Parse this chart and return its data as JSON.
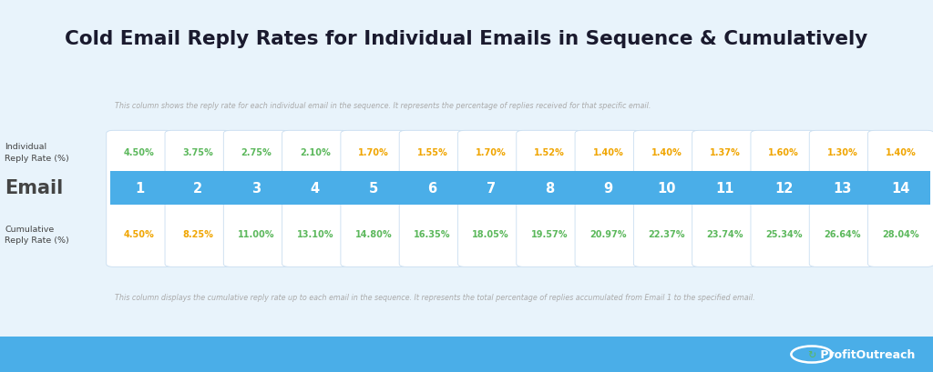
{
  "title": "Cold Email Reply Rates for Individual Emails in Sequence & Cumulatively",
  "emails": [
    1,
    2,
    3,
    4,
    5,
    6,
    7,
    8,
    9,
    10,
    11,
    12,
    13,
    14
  ],
  "individual_rates": [
    "4.50%",
    "3.75%",
    "2.75%",
    "2.10%",
    "1.70%",
    "1.55%",
    "1.70%",
    "1.52%",
    "1.40%",
    "1.40%",
    "1.37%",
    "1.60%",
    "1.30%",
    "1.40%"
  ],
  "individual_colors": [
    "#5cb85c",
    "#5cb85c",
    "#5cb85c",
    "#5cb85c",
    "#f0a500",
    "#f0a500",
    "#f0a500",
    "#f0a500",
    "#f0a500",
    "#f0a500",
    "#f0a500",
    "#f0a500",
    "#f0a500",
    "#f0a500"
  ],
  "cumulative_rates": [
    "4.50%",
    "8.25%",
    "11.00%",
    "13.10%",
    "14.80%",
    "16.35%",
    "18.05%",
    "19.57%",
    "20.97%",
    "22.37%",
    "23.74%",
    "25.34%",
    "26.64%",
    "28.04%"
  ],
  "cumulative_colors": [
    "#f0a500",
    "#f0a500",
    "#5cb85c",
    "#5cb85c",
    "#5cb85c",
    "#5cb85c",
    "#5cb85c",
    "#5cb85c",
    "#5cb85c",
    "#5cb85c",
    "#5cb85c",
    "#5cb85c",
    "#5cb85c",
    "#5cb85c"
  ],
  "row_label_individual": "Individual\nReply Rate (%)",
  "row_label_email": "Email",
  "row_label_cumulative": "Cumulative\nReply Rate (%)",
  "top_note": "This column shows the reply rate for each individual email in the sequence. It represents the percentage of replies received for that specific email.",
  "bottom_note": "This column displays the cumulative reply rate up to each email in the sequence. It represents the total percentage of replies accumulated from Email 1 to the specified email.",
  "bg_color": "#e8f3fb",
  "header_bg": "#4aaee8",
  "cell_bg": "#ffffff",
  "cell_border": "#c8ddf0",
  "header_text_color": "#ffffff",
  "title_color": "#1a1a2e",
  "note_color": "#aaaaaa",
  "label_color": "#444444",
  "footer_bg": "#4aaee8"
}
